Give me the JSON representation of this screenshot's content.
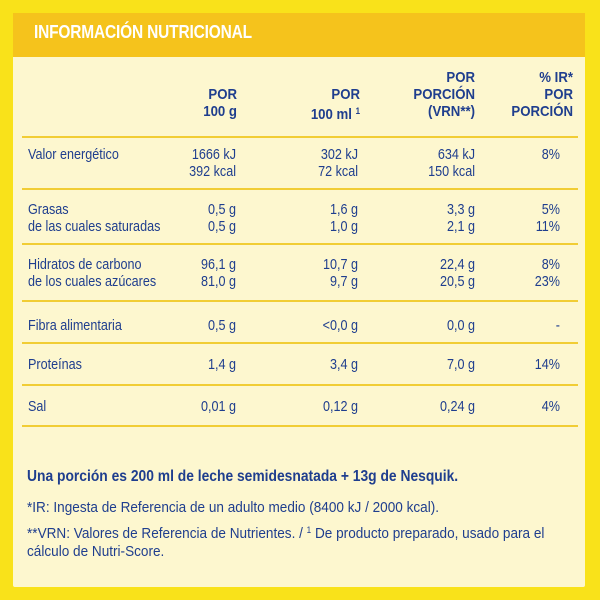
{
  "title": "INFORMACIÓN NUTRICIONAL",
  "headers": {
    "per100g": [
      "POR",
      "100 g"
    ],
    "per100ml": [
      "POR",
      "100 ml"
    ],
    "per100ml_sup": "1",
    "perPortion": [
      "POR",
      "PORCIÓN",
      "(VRN**)"
    ],
    "ir": [
      "% IR*",
      "POR",
      "PORCIÓN"
    ]
  },
  "rows": [
    {
      "label": [
        "Valor energético"
      ],
      "g100": [
        "1666 kJ",
        "392 kcal"
      ],
      "ml100": [
        "302 kJ",
        "72 kcal"
      ],
      "portion": [
        "634 kJ",
        "150 kcal"
      ],
      "ir": [
        "8%"
      ]
    },
    {
      "label": [
        "Grasas",
        "de las cuales saturadas"
      ],
      "g100": [
        "0,5 g",
        "0,5 g"
      ],
      "ml100": [
        "1,6 g",
        "1,0 g"
      ],
      "portion": [
        "3,3 g",
        "2,1 g"
      ],
      "ir": [
        "5%",
        "11%"
      ]
    },
    {
      "label": [
        "Hidratos de carbono",
        "de los cuales azúcares"
      ],
      "g100": [
        "96,1 g",
        "81,0 g"
      ],
      "ml100": [
        "10,7 g",
        "9,7 g"
      ],
      "portion": [
        "22,4 g",
        "20,5 g"
      ],
      "ir": [
        "8%",
        "23%"
      ]
    },
    {
      "label": [
        "Fibra alimentaria"
      ],
      "g100": [
        "0,5 g"
      ],
      "ml100": [
        "<0,0 g"
      ],
      "portion": [
        "0,0 g"
      ],
      "ir": [
        "-"
      ]
    },
    {
      "label": [
        "Proteínas"
      ],
      "g100": [
        "1,4 g"
      ],
      "ml100": [
        "3,4 g"
      ],
      "portion": [
        "7,0 g"
      ],
      "ir": [
        "14%"
      ]
    },
    {
      "label": [
        "Sal"
      ],
      "g100": [
        "0,01 g"
      ],
      "ml100": [
        "0,12 g"
      ],
      "portion": [
        "0,24 g"
      ],
      "ir": [
        "4%"
      ]
    }
  ],
  "notes": {
    "portion": "Una porción es 200 ml de leche semidesnatada + 13g de Nesquik.",
    "ir": "*IR: Ingesta de Referencia de un adulto medio (8400 kJ / 2000 kcal).",
    "vrn_a": "**VRN: Valores de Referencia de Nutrientes. / ",
    "vrn_sup": "1",
    "vrn_b": " De producto preparado, usado para el",
    "vrn_c": "cálculo de Nutri-Score."
  },
  "colors": {
    "background": "#f9e21a",
    "panel": "#fdf7cf",
    "title_bar": "#f5c31c",
    "text": "#1f3e8e",
    "rule": "#f1cd35"
  }
}
